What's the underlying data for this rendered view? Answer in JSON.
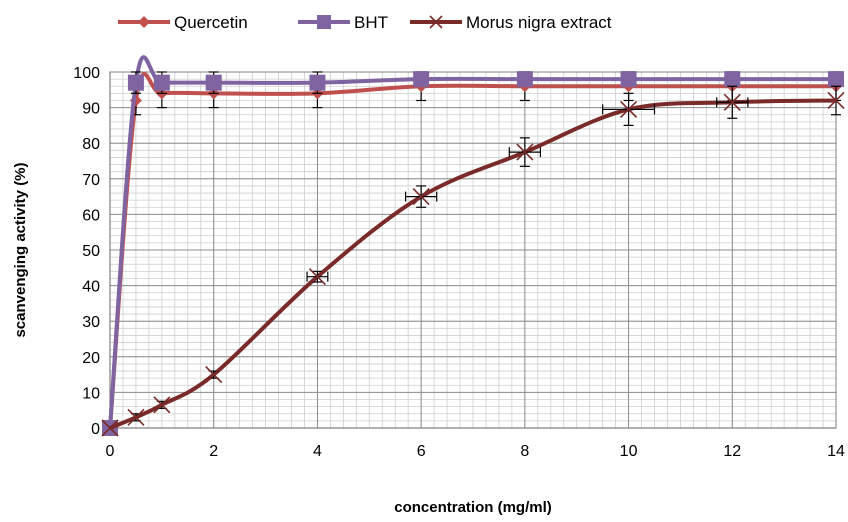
{
  "chart_data": {
    "type": "line",
    "xlabel": "concentration (mg/ml)",
    "ylabel": "scanvenging activity (%)",
    "xlim": [
      0,
      14
    ],
    "ylim": [
      0,
      100
    ],
    "x_ticks": [
      0,
      2,
      4,
      6,
      8,
      10,
      12,
      14
    ],
    "y_ticks": [
      0,
      10,
      20,
      30,
      40,
      50,
      60,
      70,
      80,
      90,
      100
    ],
    "x_minor_step": 0.25,
    "y_minor_step": 2,
    "grid": true,
    "legend_position": "top",
    "series": [
      {
        "name": "Quercetin",
        "color": "#C0504D",
        "marker": "diamond",
        "x": [
          0,
          0.5,
          1,
          2,
          4,
          6,
          8,
          10,
          12,
          14
        ],
        "y": [
          0,
          92,
          94,
          94,
          94,
          96,
          96,
          96,
          96,
          96
        ],
        "y_error": [
          0,
          4,
          4,
          4,
          4,
          4,
          4,
          4,
          4,
          4
        ]
      },
      {
        "name": "BHT",
        "color": "#8064A2",
        "marker": "square",
        "x": [
          0,
          0.5,
          1,
          2,
          4,
          6,
          8,
          10,
          12,
          14
        ],
        "y": [
          0,
          97,
          97,
          97,
          97,
          98,
          98,
          98,
          98,
          98
        ],
        "y_error": [
          0,
          3,
          3,
          3,
          3,
          2,
          2,
          2,
          2,
          2
        ]
      },
      {
        "name": "Morus nigra extract",
        "color": "#7B2A2A",
        "marker": "x",
        "x": [
          0,
          0.5,
          1,
          2,
          4,
          6,
          8,
          10,
          12,
          14
        ],
        "y": [
          0,
          3,
          6.5,
          15,
          42.5,
          65,
          77.5,
          89.5,
          91.5,
          92
        ],
        "y_error": [
          0,
          1,
          1,
          1,
          1.5,
          3,
          4,
          4.5,
          4.5,
          4
        ],
        "x_error": [
          0,
          0,
          0,
          0,
          0.2,
          0.3,
          0.3,
          0.5,
          0.3,
          0
        ]
      }
    ]
  }
}
